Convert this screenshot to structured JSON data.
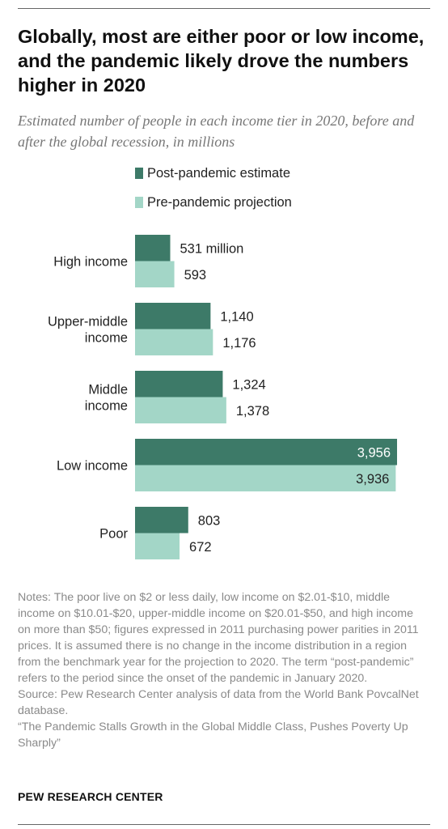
{
  "title": "Globally, most are either poor or low income, and the pandemic likely drove the numbers higher in 2020",
  "subtitle": "Estimated number of people in each income tier in 2020, before and after the global recession, in millions",
  "notes": [
    "Notes: The poor live on $2 or less daily, low income on $2.01-$10, middle income on $10.01-$20, upper-middle income on $20.01-$50, and high income on more than $50; figures expressed in 2011 purchasing power parities in 2011 prices. It is assumed there is no change in the income distribution in a region from the benchmark year for the projection to 2020. The term “post-pandemic” refers to the period since the onset of the pandemic in January 2020.",
    "Source: Pew Research Center analysis of data from the World Bank PovcalNet database.",
    "“The Pandemic Stalls Growth in the Global Middle Class, Pushes Poverty Up Sharply”"
  ],
  "brand": "PEW RESEARCH CENTER",
  "chart_data": {
    "type": "bar",
    "orientation": "horizontal",
    "categories": [
      [
        "High income"
      ],
      [
        "Upper-middle",
        "income"
      ],
      [
        "Middle",
        "income"
      ],
      [
        "Low income"
      ],
      [
        "Poor"
      ]
    ],
    "series": [
      {
        "name": "Post-pandemic estimate",
        "color": "#3d7a68",
        "values": [
          531,
          1140,
          1324,
          3956,
          803
        ],
        "labels": [
          "531 million",
          "1,140",
          "1,324",
          "3,956",
          "803"
        ]
      },
      {
        "name": "Pre-pandemic projection",
        "color": "#a3d6c7",
        "values": [
          593,
          1176,
          1378,
          3936,
          672
        ],
        "labels": [
          "593",
          "1,176",
          "1,378",
          "3,936",
          "672"
        ]
      }
    ],
    "xlim": [
      0,
      3956
    ],
    "legend_position": "top",
    "grid": false
  }
}
